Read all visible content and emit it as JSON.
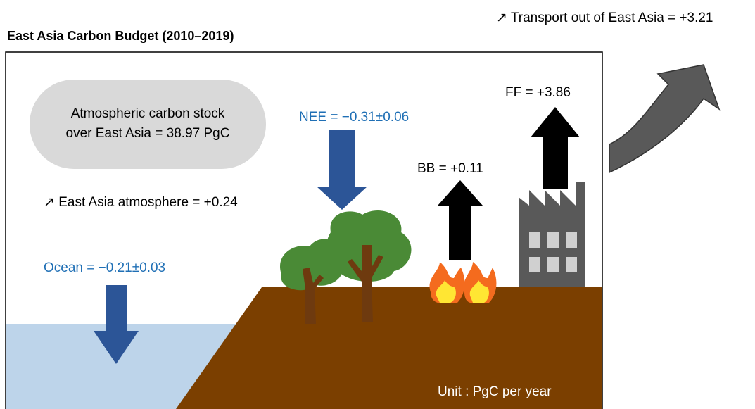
{
  "title": "East Asia Carbon Budget (2010–2019)",
  "transport_label": "↗ Transport out of East Asia = +3.21",
  "stock_label": {
    "lines": [
      "Atmospheric carbon stock",
      "over East Asia = 38.97 PgC"
    ]
  },
  "atmosphere_label": "↗ East Asia atmosphere = +0.24",
  "ocean_label": "Ocean = −0.21±0.03",
  "nee_label": "NEE = −0.31±0.06",
  "bb_label": "BB = +0.11",
  "ff_label": "FF = +3.86",
  "unit_label": "Unit : PgC per year"
}
